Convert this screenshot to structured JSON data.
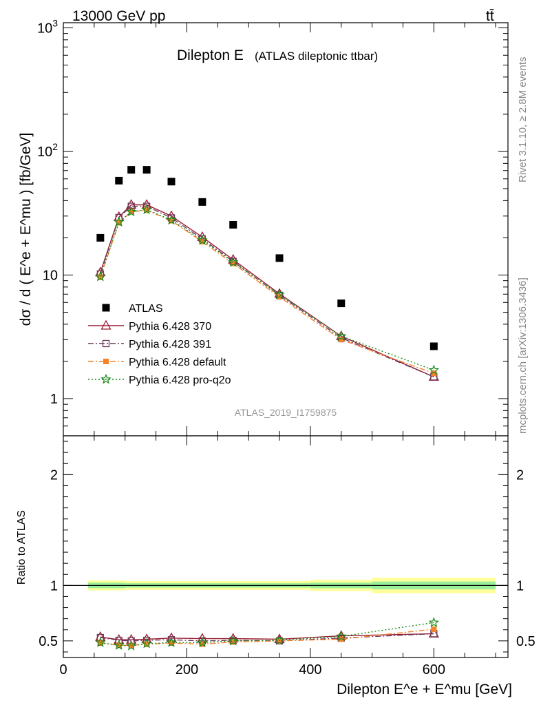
{
  "header": {
    "left": "13000 GeV pp",
    "right": "tt̄"
  },
  "side_labels": {
    "rivet": "Rivet 3.1.10, ≥ 2.8M events",
    "mcplots": "mcplots.cern.ch [arXiv:1306.3436]"
  },
  "chart_data": [
    {
      "type": "scatter",
      "title": "Dilepton E",
      "subtitle": "(ATLAS dileptonic ttbar)",
      "watermark": "ATLAS_2019_I1759875",
      "ylabel": "dσ / d ( E^e + E^mu ) [fb/GeV]",
      "yscale": "log",
      "ylim": [
        0.5,
        1100
      ],
      "xlim": [
        0,
        720
      ],
      "y_tick_labels": [
        "1",
        "10",
        "10^2",
        "10^3"
      ],
      "legend_placement": "middle-left",
      "x": [
        60,
        90,
        110,
        135,
        175,
        225,
        275,
        350,
        450,
        600
      ],
      "series": [
        {
          "name": "ATLAS",
          "marker": "filled-square",
          "color": "#000000",
          "values": [
            20,
            58,
            71,
            71,
            57,
            39,
            25.5,
            13.7,
            5.9,
            2.65
          ]
        },
        {
          "name": "Pythia 6.428 370",
          "marker": "open-triangle",
          "line": "solid",
          "color": "#9b1b30",
          "values": [
            10.5,
            29.5,
            37,
            37,
            30,
            20.3,
            13.3,
            7.05,
            3.2,
            1.5
          ]
        },
        {
          "name": "Pythia 6.428 391",
          "marker": "open-square",
          "line": "dashdot",
          "color": "#6b3a5b",
          "values": [
            10.2,
            29.2,
            36,
            36,
            29,
            19.6,
            12.9,
            6.85,
            3.1,
            1.5
          ]
        },
        {
          "name": "Pythia 6.428 default",
          "marker": "filled-square-small",
          "line": "dashdot",
          "color": "#f5822a",
          "values": [
            9.6,
            26.5,
            32.5,
            33.5,
            27.5,
            18.6,
            12.4,
            6.65,
            3.0,
            1.6
          ]
        },
        {
          "name": "Pythia 6.428 pro-q2o",
          "marker": "star",
          "line": "dotted",
          "color": "#1a8a1a",
          "values": [
            9.7,
            26.8,
            32.5,
            33.8,
            27.8,
            19.1,
            12.7,
            6.95,
            3.2,
            1.7
          ]
        }
      ]
    },
    {
      "type": "line",
      "ylabel": "Ratio to ATLAS",
      "xlabel": "Dilepton E^e + E^mu [GeV]",
      "xlim": [
        0,
        720
      ],
      "ylim": [
        0.35,
        2.35
      ],
      "x_tick_labels": [
        "0",
        "200",
        "400",
        "600"
      ],
      "y_tick_labels": [
        "0.5",
        "1",
        "2"
      ],
      "band_edges": [
        40,
        75,
        100,
        120,
        150,
        200,
        250,
        300,
        400,
        500,
        700
      ],
      "band_yellow_halfwidth": [
        0.045,
        0.045,
        0.04,
        0.04,
        0.04,
        0.04,
        0.04,
        0.04,
        0.05,
        0.07
      ],
      "band_green_halfwidth": [
        0.025,
        0.025,
        0.02,
        0.02,
        0.02,
        0.02,
        0.02,
        0.02,
        0.025,
        0.035
      ],
      "x": [
        60,
        90,
        110,
        135,
        175,
        225,
        275,
        350,
        450,
        600
      ],
      "series": [
        {
          "name": "Pythia 6.428 370",
          "values": [
            0.535,
            0.51,
            0.51,
            0.515,
            0.525,
            0.52,
            0.52,
            0.515,
            0.545,
            0.565
          ]
        },
        {
          "name": "Pythia 6.428 391",
          "values": [
            0.53,
            0.505,
            0.5,
            0.505,
            0.51,
            0.5,
            0.505,
            0.5,
            0.525,
            0.565
          ]
        },
        {
          "name": "Pythia 6.428 default",
          "values": [
            0.48,
            0.46,
            0.46,
            0.47,
            0.48,
            0.47,
            0.49,
            0.5,
            0.515,
            0.605
          ]
        },
        {
          "name": "Pythia 6.428 pro-q2o",
          "values": [
            0.485,
            0.46,
            0.455,
            0.475,
            0.485,
            0.485,
            0.5,
            0.505,
            0.54,
            0.665
          ]
        }
      ]
    }
  ]
}
